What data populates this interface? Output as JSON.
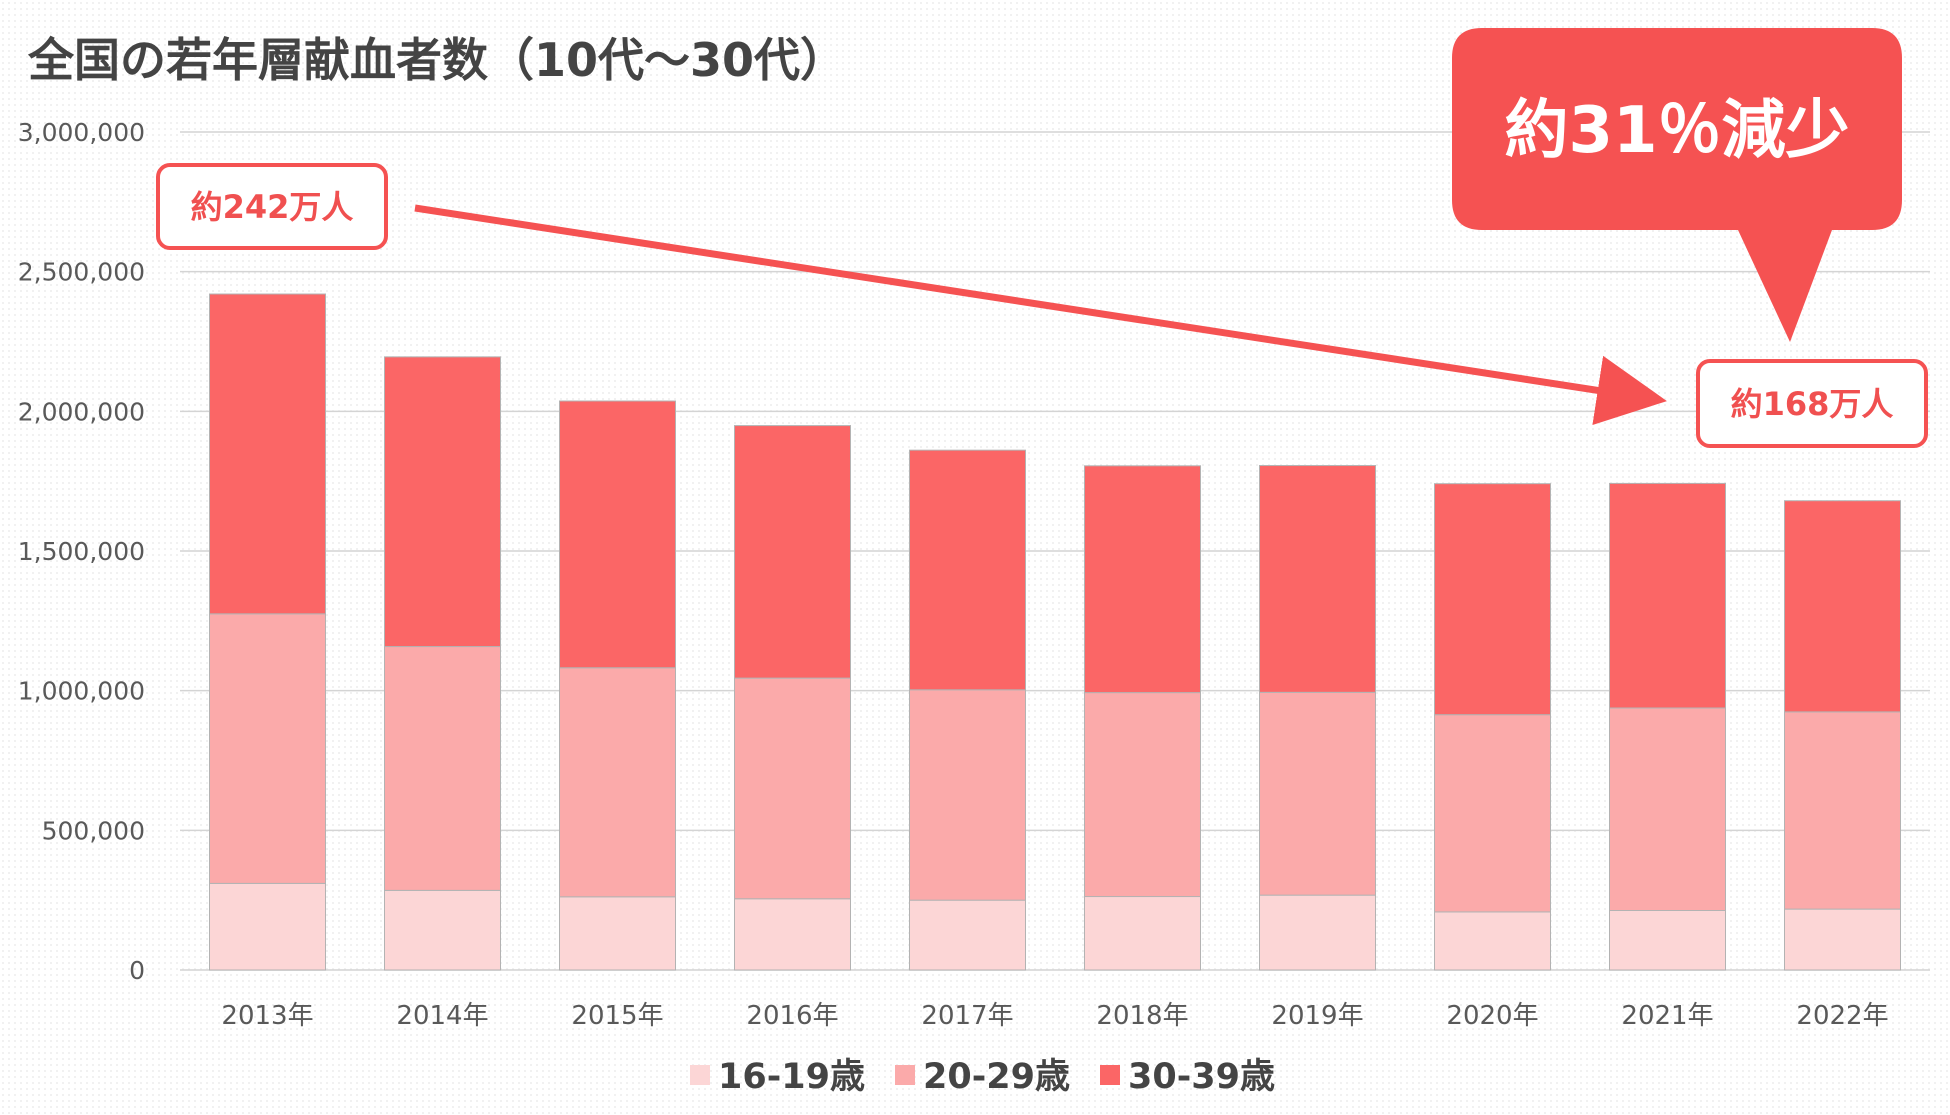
{
  "colors": {
    "s1": "#fcd6d6",
    "s2": "#fbaaaa",
    "s3": "#fb6666",
    "accent": "#f55252",
    "grid": "#d4d4d4",
    "bar_border": "#b3b3b3"
  },
  "chart_data": {
    "type": "bar",
    "stacked": true,
    "title": "全国の若年層献血者数（10代〜30代）",
    "xlabel": "",
    "ylabel": "",
    "ylim": [
      0,
      3000000
    ],
    "yticks": [
      "0",
      "500,000",
      "1,000,000",
      "1,500,000",
      "2,000,000",
      "2,500,000",
      "3,000,000"
    ],
    "ytick_values": [
      0,
      500000,
      1000000,
      1500000,
      2000000,
      2500000,
      3000000
    ],
    "categories": [
      "2013年",
      "2014年",
      "2015年",
      "2016年",
      "2017年",
      "2018年",
      "2019年",
      "2020年",
      "2021年",
      "2022年"
    ],
    "series": [
      {
        "name": "16-19歳",
        "values": [
          310000,
          285000,
          262000,
          255000,
          250000,
          263000,
          268000,
          208000,
          213000,
          218000
        ]
      },
      {
        "name": "20-29歳",
        "values": [
          965000,
          873000,
          820000,
          790000,
          753000,
          730000,
          726000,
          706000,
          725000,
          706000
        ]
      },
      {
        "name": "30-39歳",
        "values": [
          1145000,
          1037000,
          955000,
          904000,
          858000,
          812000,
          812000,
          827000,
          804000,
          756000
        ]
      }
    ],
    "grid": true,
    "legend": "bottom",
    "annotations": {
      "start_label": "約242万人",
      "end_label": "約168万人",
      "bubble_label": "約31％減少"
    }
  }
}
